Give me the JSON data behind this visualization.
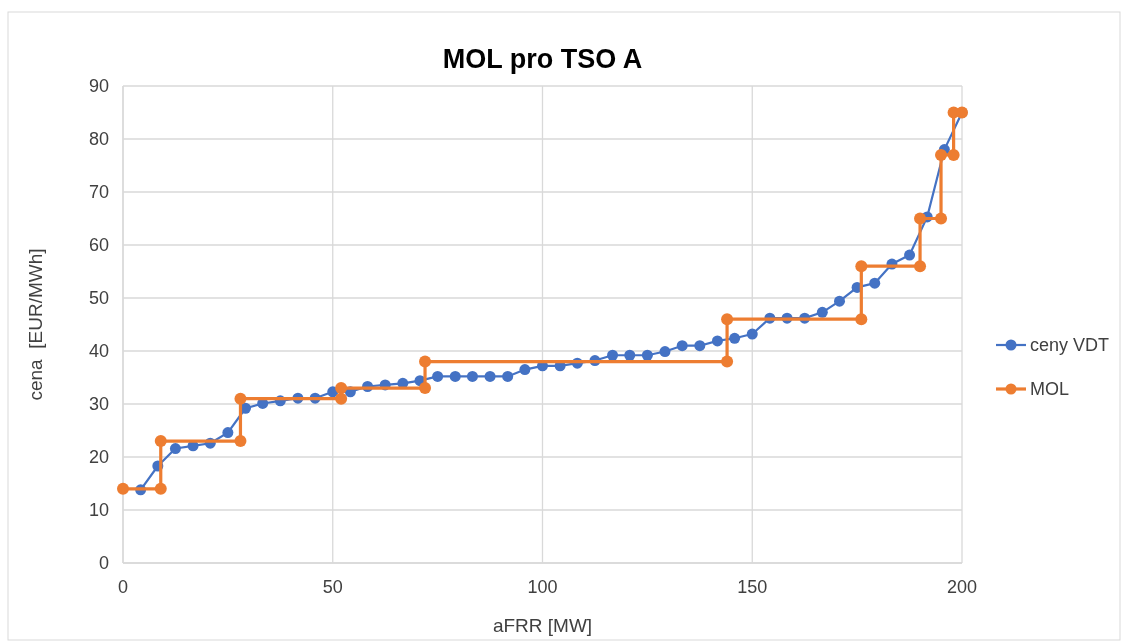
{
  "chart_data": {
    "type": "line",
    "title": "MOL pro TSO A",
    "xlabel": "aFRR [MW]",
    "ylabel": "cena  [EUR/MWh]",
    "xlim": [
      0,
      200
    ],
    "xticks": [
      0,
      50,
      100,
      150,
      200
    ],
    "ylim": [
      0,
      90
    ],
    "yticks": [
      0,
      10,
      20,
      30,
      40,
      50,
      60,
      70,
      80,
      90
    ],
    "grid": true,
    "legend": "right",
    "marker": "circle",
    "line_style": "solid",
    "series": [
      {
        "name": "ceny VDT",
        "color": "#4472c4",
        "x": [
          4.2,
          8.3,
          12.5,
          16.7,
          20.8,
          25,
          29.2,
          33.3,
          37.5,
          41.7,
          45.8,
          50,
          54.2,
          58.3,
          62.5,
          66.7,
          70.8,
          75,
          79.2,
          83.3,
          87.5,
          91.7,
          95.8,
          100,
          104.2,
          108.3,
          112.5,
          116.7,
          120.8,
          125,
          129.2,
          133.3,
          137.5,
          141.7,
          145.8,
          150,
          154.2,
          158.3,
          162.5,
          166.7,
          170.8,
          175,
          179.2,
          183.3,
          187.5,
          191.7,
          195.8,
          200
        ],
        "values": [
          13.8,
          18.3,
          21.6,
          22.1,
          22.6,
          24.6,
          29.2,
          30.1,
          30.6,
          31.1,
          31.1,
          32.3,
          32.3,
          33.3,
          33.6,
          33.9,
          34.4,
          35.2,
          35.2,
          35.2,
          35.2,
          35.2,
          36.5,
          37.2,
          37.2,
          37.7,
          38.2,
          39.2,
          39.2,
          39.2,
          39.9,
          41,
          41,
          41.9,
          42.4,
          43.2,
          46.2,
          46.2,
          46.2,
          47.3,
          49.4,
          52,
          52.8,
          56.4,
          58.1,
          65.3,
          78,
          85
        ]
      },
      {
        "name": "MOL",
        "color": "#ed7d31",
        "type": "line",
        "x": [
          0,
          9,
          9,
          28,
          28,
          52,
          52,
          72,
          72,
          144,
          144,
          176,
          176,
          190,
          190,
          195,
          195,
          198,
          198,
          200
        ],
        "values": [
          14,
          14,
          23,
          23,
          31,
          31,
          33,
          33,
          38,
          38,
          46,
          46,
          56,
          56,
          65,
          65,
          77,
          77,
          85,
          85
        ]
      }
    ]
  }
}
